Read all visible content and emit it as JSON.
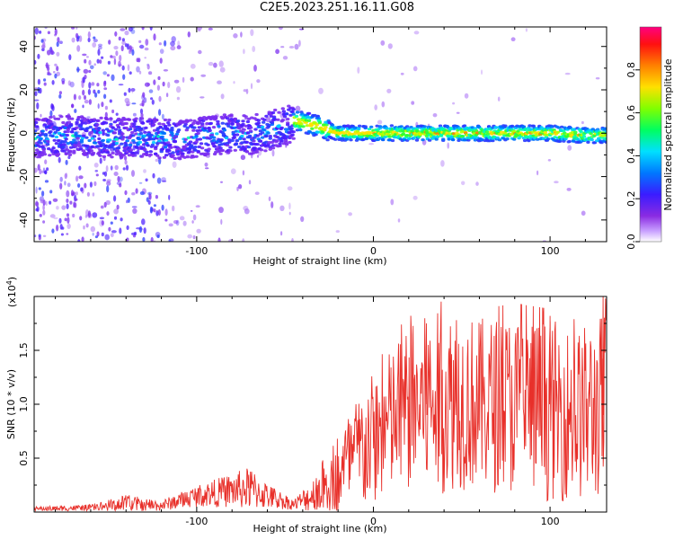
{
  "title": "C2E5.2023.251.16.11.G08",
  "chart_data": [
    {
      "type": "heatmap",
      "xlabel": "Height of straight line (km)",
      "ylabel": "Frequency (Hz)",
      "xlim": [
        -192,
        132
      ],
      "ylim": [
        -50,
        49
      ],
      "xticks": [
        -100,
        0,
        100
      ],
      "yticks": [
        -40,
        -20,
        0,
        20,
        40
      ],
      "colorbar": {
        "label": "Normalized spectral amplitude",
        "range": [
          0.0,
          1.0
        ],
        "ticks": [
          "0.0",
          "0.2",
          "0.4",
          "0.6",
          "0.8"
        ],
        "colormap": [
          "#ffffff",
          "#8a2be2",
          "#3a1cff",
          "#0078ff",
          "#00e0ff",
          "#00ff60",
          "#c8ff00",
          "#ffe000",
          "#ff8000",
          "#ff1010",
          "#ff0080"
        ]
      },
      "ridge": {
        "x": [
          -190,
          -170,
          -150,
          -130,
          -110,
          -90,
          -80,
          -70,
          -60,
          -50,
          -45,
          -40,
          -35,
          -30,
          -20,
          0,
          20,
          40,
          60,
          80,
          100,
          120,
          132
        ],
        "y": [
          -2,
          -1,
          -2,
          -2,
          -3,
          -1,
          0,
          -1,
          1,
          3,
          6,
          5,
          4,
          3,
          0,
          0,
          0,
          0,
          0,
          0,
          0,
          -1,
          -1
        ]
      }
    },
    {
      "type": "line",
      "xlabel": "Height of straight line (km)",
      "ylabel": "SNR (10 * v/v)",
      "y_multiplier": "(x10",
      "y_multiplier_exp": "4",
      "y_multiplier_close": ")",
      "xlim": [
        -192,
        132
      ],
      "ylim": [
        0,
        2.0
      ],
      "xticks": [
        -100,
        0,
        100
      ],
      "yticks": [
        "0.5",
        "1.0",
        "1.5"
      ],
      "line_color": "#e8302a",
      "envelope": {
        "x": [
          -192,
          -160,
          -140,
          -120,
          -100,
          -80,
          -70,
          -60,
          -45,
          -35,
          -25,
          -15,
          -5,
          5,
          15,
          25,
          35,
          45,
          60,
          80,
          100,
          115,
          125,
          132
        ],
        "y_base": [
          0.03,
          0.04,
          0.08,
          0.06,
          0.15,
          0.2,
          0.22,
          0.15,
          0.07,
          0.15,
          0.3,
          0.45,
          0.6,
          0.75,
          0.9,
          1.0,
          1.0,
          1.05,
          1.0,
          1.0,
          0.95,
          0.9,
          0.95,
          1.0
        ],
        "y_amp": [
          0.02,
          0.03,
          0.08,
          0.05,
          0.1,
          0.16,
          0.2,
          0.12,
          0.05,
          0.15,
          0.3,
          0.45,
          0.6,
          0.65,
          0.75,
          0.8,
          0.85,
          0.85,
          0.8,
          0.85,
          0.85,
          0.8,
          0.85,
          0.9
        ]
      },
      "peaks": [
        {
          "x": 130,
          "y": 2.0
        },
        {
          "x": 100,
          "y": 1.82
        },
        {
          "x": 47,
          "y": 1.78
        },
        {
          "x": 30,
          "y": 1.75
        }
      ]
    }
  ]
}
